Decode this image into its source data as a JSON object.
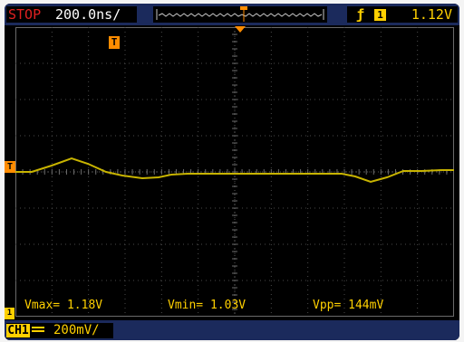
{
  "status": {
    "run_state": "STOP",
    "timebase": "200.0ns/"
  },
  "trigger": {
    "edge_icon": "rising-edge-icon",
    "source": "1",
    "level": "1.12V",
    "marker": "T"
  },
  "channel": {
    "level_marker": "T",
    "ground_marker": "1",
    "tag": "CH1",
    "coupling_icon": "dc-coupling-icon",
    "scale": "200mV/"
  },
  "measurements": {
    "vmax": "Vmax= 1.18V",
    "vmin": "Vmin= 1.03V",
    "vpp": "Vpp= 144mV"
  },
  "colors": {
    "background": "#000000",
    "bar": "#1b2a5c",
    "trace": "#c8b400",
    "trigger_marker": "#ff8c00",
    "stop": "#e02020",
    "text_yellow": "#ffd000"
  }
}
